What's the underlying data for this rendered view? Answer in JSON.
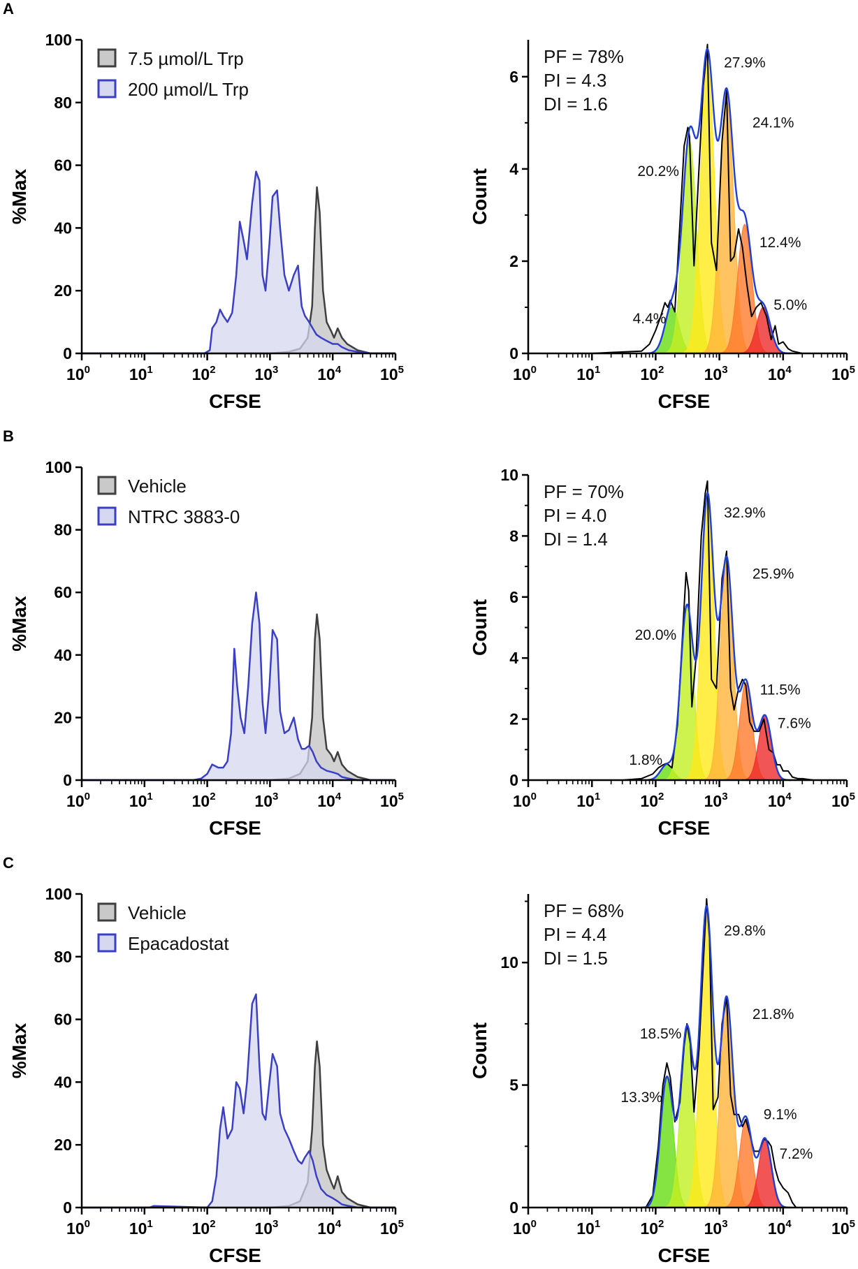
{
  "colors": {
    "gray_line": "#3f3f3f",
    "gray_fill": "#c9c9c9",
    "blue_line": "#3a3fc4",
    "blue_fill": "#d6d8ef",
    "black_line": "#000000",
    "fit_line": "#1f3fd8",
    "generations": [
      "#66dd11",
      "#c2ef22",
      "#ffe81a",
      "#ffb43a",
      "#ff7a2c",
      "#ee2b2b"
    ]
  },
  "chart_data": [
    {
      "panel": "A",
      "type": "area",
      "kind": "overlay",
      "xlabel": "CFSE",
      "ylabel": "%Max",
      "xscale": "log",
      "xlim": [
        1,
        100000
      ],
      "ylim": [
        0,
        100
      ],
      "yticks": [
        0,
        20,
        40,
        60,
        80,
        100
      ],
      "xticks": [
        {
          "base": "10",
          "exp": "0"
        },
        {
          "base": "10",
          "exp": "1"
        },
        {
          "base": "10",
          "exp": "2"
        },
        {
          "base": "10",
          "exp": "3"
        },
        {
          "base": "10",
          "exp": "4"
        },
        {
          "base": "10",
          "exp": "5"
        }
      ],
      "legend_position": "top-left",
      "series": [
        {
          "name": "7.5 µmol/L Trp",
          "color": "gray",
          "x": [
            1,
            1000,
            2000,
            3000,
            4000,
            4700,
            5200,
            5600,
            6200,
            7000,
            8000,
            9500,
            10500,
            12000,
            14000,
            17000,
            25000,
            40000,
            100000
          ],
          "values": [
            0,
            0,
            0.5,
            1.5,
            5,
            15,
            40,
            53,
            45,
            20,
            10,
            7,
            5,
            8,
            5,
            3,
            1,
            0,
            0
          ]
        },
        {
          "name": "200 µmol/L Trp",
          "color": "blue",
          "x": [
            1,
            90,
            110,
            120,
            140,
            160,
            180,
            210,
            250,
            290,
            330,
            380,
            430,
            520,
            600,
            680,
            760,
            850,
            980,
            1100,
            1300,
            1450,
            1700,
            2000,
            2400,
            2800,
            3200,
            3600,
            4200,
            4800,
            5500,
            6500,
            8000,
            10000,
            12000,
            14000,
            18000,
            25000,
            40000,
            100000
          ],
          "values": [
            0,
            0,
            1,
            8,
            10,
            14,
            12,
            10,
            13,
            25,
            42,
            36,
            30,
            48,
            58,
            55,
            25,
            20,
            35,
            50,
            52,
            40,
            25,
            20,
            25,
            28,
            15,
            12,
            10,
            8,
            6,
            5,
            4,
            3,
            3,
            2,
            1,
            0.5,
            0,
            0
          ]
        }
      ]
    },
    {
      "panel": "A",
      "type": "area",
      "kind": "generations",
      "xlabel": "CFSE",
      "ylabel": "Count",
      "xscale": "log",
      "xlim": [
        1,
        100000
      ],
      "ylim": [
        0,
        6.8
      ],
      "yticks": [
        0,
        2,
        4,
        6
      ],
      "xticks": [
        {
          "base": "10",
          "exp": "0"
        },
        {
          "base": "10",
          "exp": "1"
        },
        {
          "base": "10",
          "exp": "2"
        },
        {
          "base": "10",
          "exp": "3"
        },
        {
          "base": "10",
          "exp": "4"
        },
        {
          "base": "10",
          "exp": "5"
        }
      ],
      "stats": [
        "PF = 78%",
        "PI = 4.3",
        "DI = 1.6"
      ],
      "generations": [
        {
          "center": 180,
          "height": 1.0,
          "label": "4.4%",
          "label_x": 80,
          "label_y": 0.65
        },
        {
          "center": 340,
          "height": 4.6,
          "label": "20.2%",
          "label_x": 110,
          "label_y": 3.85
        },
        {
          "center": 650,
          "height": 6.3,
          "label": "27.9%",
          "label_x": 2500,
          "label_y": 6.2
        },
        {
          "center": 1300,
          "height": 5.5,
          "label": "24.1%",
          "label_x": 7000,
          "label_y": 4.9
        },
        {
          "center": 2500,
          "height": 2.8,
          "label": "12.4%",
          "label_x": 9000,
          "label_y": 2.3
        },
        {
          "center": 4900,
          "height": 1.0,
          "label": "5.0%",
          "label_x": 13000,
          "label_y": 0.95
        }
      ],
      "sigma_decades": 0.11,
      "raw": {
        "x": [
          1,
          10,
          20,
          60,
          80,
          100,
          120,
          140,
          155,
          170,
          200,
          240,
          280,
          320,
          340,
          400,
          470,
          560,
          650,
          750,
          900,
          1100,
          1300,
          1500,
          1700,
          2000,
          2300,
          2700,
          3200,
          3800,
          4500,
          5500,
          6500,
          7500,
          8500,
          10000,
          12000,
          14000,
          20000,
          100000
        ],
        "values": [
          0,
          0,
          0.02,
          0.05,
          0.2,
          0.5,
          0.8,
          1.1,
          1.0,
          1.15,
          0.9,
          2.8,
          4.5,
          4.9,
          4.7,
          1.9,
          3.8,
          5.8,
          6.7,
          2.4,
          1.8,
          4.6,
          5.7,
          2.0,
          2.1,
          2.7,
          2.3,
          1.5,
          0.8,
          1.0,
          1.1,
          0.8,
          0.3,
          0.6,
          0.2,
          0.25,
          0.1,
          0.05,
          0,
          0
        ]
      }
    },
    {
      "panel": "B",
      "type": "area",
      "kind": "overlay",
      "xlabel": "CFSE",
      "ylabel": "%Max",
      "xscale": "log",
      "xlim": [
        1,
        100000
      ],
      "ylim": [
        0,
        100
      ],
      "yticks": [
        0,
        20,
        40,
        60,
        80,
        100
      ],
      "xticks": [
        {
          "base": "10",
          "exp": "0"
        },
        {
          "base": "10",
          "exp": "1"
        },
        {
          "base": "10",
          "exp": "2"
        },
        {
          "base": "10",
          "exp": "3"
        },
        {
          "base": "10",
          "exp": "4"
        },
        {
          "base": "10",
          "exp": "5"
        }
      ],
      "legend_position": "top-left",
      "series": [
        {
          "name": "Vehicle",
          "color": "gray",
          "x": [
            1,
            1000,
            2000,
            3000,
            4000,
            4700,
            5200,
            5600,
            6200,
            7000,
            8000,
            9500,
            10500,
            12000,
            14000,
            17000,
            25000,
            40000,
            100000
          ],
          "values": [
            0,
            0,
            0.5,
            2,
            6,
            20,
            45,
            53,
            45,
            20,
            10,
            8,
            6,
            9,
            5,
            3,
            1,
            0,
            0
          ]
        },
        {
          "name": "NTRC 3883-0",
          "color": "blue",
          "x": [
            1,
            60,
            80,
            100,
            120,
            150,
            180,
            210,
            240,
            270,
            300,
            340,
            390,
            450,
            520,
            600,
            680,
            760,
            850,
            980,
            1100,
            1300,
            1450,
            1700,
            2000,
            2400,
            2800,
            3200,
            3600,
            4200,
            4800,
            5500,
            6500,
            8000,
            10000,
            12000,
            14000,
            18000,
            25000,
            40000,
            100000
          ],
          "values": [
            0,
            0,
            0.5,
            2,
            5,
            4,
            4,
            6,
            15,
            42,
            30,
            20,
            15,
            30,
            50,
            60,
            50,
            25,
            15,
            30,
            48,
            45,
            22,
            15,
            16,
            20,
            13,
            10,
            10,
            11,
            9,
            6,
            4,
            3,
            2.5,
            2,
            1,
            0.5,
            0,
            0,
            0
          ]
        }
      ]
    },
    {
      "panel": "B",
      "type": "area",
      "kind": "generations",
      "xlabel": "CFSE",
      "ylabel": "Count",
      "xscale": "log",
      "xlim": [
        1,
        100000
      ],
      "ylim": [
        0,
        10
      ],
      "yticks": [
        0,
        2,
        4,
        6,
        8,
        10
      ],
      "xticks": [
        {
          "base": "10",
          "exp": "0"
        },
        {
          "base": "10",
          "exp": "1"
        },
        {
          "base": "10",
          "exp": "2"
        },
        {
          "base": "10",
          "exp": "3"
        },
        {
          "base": "10",
          "exp": "4"
        },
        {
          "base": "10",
          "exp": "5"
        }
      ],
      "stats": [
        "PF = 70%",
        "PI = 4.0",
        "DI = 1.4"
      ],
      "generations": [
        {
          "center": 150,
          "height": 0.5,
          "label": "1.8%",
          "label_x": 70,
          "label_y": 0.5
        },
        {
          "center": 310,
          "height": 5.7,
          "label": "20.0%",
          "label_x": 100,
          "label_y": 4.6
        },
        {
          "center": 650,
          "height": 9.3,
          "label": "32.9%",
          "label_x": 2500,
          "label_y": 8.6
        },
        {
          "center": 1300,
          "height": 7.2,
          "label": "25.9%",
          "label_x": 7000,
          "label_y": 6.6
        },
        {
          "center": 2600,
          "height": 3.2,
          "label": "11.5%",
          "label_x": 9000,
          "label_y": 2.8
        },
        {
          "center": 5200,
          "height": 2.1,
          "label": "7.6%",
          "label_x": 15000,
          "label_y": 1.7
        }
      ],
      "sigma_decades": 0.1,
      "raw": {
        "x": [
          1,
          30,
          60,
          90,
          110,
          130,
          150,
          180,
          220,
          260,
          300,
          330,
          370,
          430,
          520,
          600,
          650,
          750,
          900,
          1100,
          1300,
          1500,
          1700,
          2000,
          2300,
          2600,
          3000,
          3500,
          4200,
          5000,
          6000,
          7000,
          8000,
          9000,
          10000,
          12000,
          14000,
          17000,
          20000,
          30000,
          100000
        ],
        "values": [
          0,
          0,
          0.05,
          0.2,
          0.4,
          0.5,
          0.55,
          0.4,
          1.8,
          4.5,
          6.8,
          6.2,
          2.4,
          4.0,
          8.0,
          9.4,
          9.8,
          3.3,
          3.0,
          6.6,
          7.5,
          3.0,
          2.3,
          3.0,
          3.3,
          3.1,
          1.9,
          1.6,
          1.6,
          2.0,
          1.0,
          0.9,
          0.5,
          0.5,
          0.3,
          0.3,
          0.1,
          0.05,
          0.05,
          0,
          0
        ]
      }
    },
    {
      "panel": "C",
      "type": "area",
      "kind": "overlay",
      "xlabel": "CFSE",
      "ylabel": "%Max",
      "xscale": "log",
      "xlim": [
        1,
        100000
      ],
      "ylim": [
        0,
        100
      ],
      "yticks": [
        0,
        20,
        40,
        60,
        80,
        100
      ],
      "xticks": [
        {
          "base": "10",
          "exp": "0"
        },
        {
          "base": "10",
          "exp": "1"
        },
        {
          "base": "10",
          "exp": "2"
        },
        {
          "base": "10",
          "exp": "3"
        },
        {
          "base": "10",
          "exp": "4"
        },
        {
          "base": "10",
          "exp": "5"
        }
      ],
      "legend_position": "top-left",
      "series": [
        {
          "name": "Vehicle",
          "color": "gray",
          "x": [
            1,
            1000,
            2000,
            3000,
            4000,
            4700,
            5200,
            5600,
            6200,
            7000,
            8000,
            9500,
            10500,
            12000,
            14000,
            17000,
            25000,
            40000,
            100000
          ],
          "values": [
            0,
            0,
            0.5,
            2,
            8,
            25,
            45,
            53,
            45,
            20,
            12,
            8,
            6,
            10,
            5,
            3,
            1,
            0,
            0
          ]
        },
        {
          "name": "Epacadostat",
          "color": "blue",
          "x": [
            1,
            12,
            14,
            100,
            120,
            140,
            160,
            180,
            210,
            250,
            290,
            330,
            380,
            430,
            520,
            600,
            680,
            760,
            850,
            980,
            1100,
            1300,
            1450,
            1700,
            2000,
            2400,
            2800,
            3200,
            3600,
            4200,
            4800,
            5500,
            6500,
            8000,
            10000,
            12000,
            14000,
            18000,
            25000,
            40000,
            100000
          ],
          "values": [
            0,
            0,
            0.5,
            0,
            2,
            10,
            25,
            32,
            22,
            25,
            40,
            38,
            30,
            40,
            65,
            68,
            45,
            30,
            28,
            40,
            49,
            45,
            30,
            25,
            22,
            18,
            15,
            14,
            16,
            18,
            15,
            10,
            6,
            4,
            3,
            2,
            1,
            0.5,
            0,
            0,
            0
          ]
        }
      ]
    },
    {
      "panel": "C",
      "type": "area",
      "kind": "generations",
      "xlabel": "CFSE",
      "ylabel": "Count",
      "xscale": "log",
      "xlim": [
        1,
        100000
      ],
      "ylim": [
        0,
        12.8
      ],
      "yticks": [
        0,
        5,
        10
      ],
      "xticks": [
        {
          "base": "10",
          "exp": "0"
        },
        {
          "base": "10",
          "exp": "1"
        },
        {
          "base": "10",
          "exp": "2"
        },
        {
          "base": "10",
          "exp": "3"
        },
        {
          "base": "10",
          "exp": "4"
        },
        {
          "base": "10",
          "exp": "5"
        }
      ],
      "stats": [
        "PF = 68%",
        "PI = 4.4",
        "DI = 1.5"
      ],
      "generations": [
        {
          "center": 150,
          "height": 5.3,
          "label": "13.3%",
          "label_x": 60,
          "label_y": 4.3
        },
        {
          "center": 310,
          "height": 7.3,
          "label": "18.5%",
          "label_x": 120,
          "label_y": 6.9
        },
        {
          "center": 630,
          "height": 12.2,
          "label": "29.8%",
          "label_x": 2500,
          "label_y": 11.1
        },
        {
          "center": 1300,
          "height": 8.5,
          "label": "21.8%",
          "label_x": 7000,
          "label_y": 7.7
        },
        {
          "center": 2600,
          "height": 3.6,
          "label": "9.1%",
          "label_x": 9000,
          "label_y": 3.6
        },
        {
          "center": 5200,
          "height": 2.8,
          "label": "7.2%",
          "label_x": 16000,
          "label_y": 2.0
        }
      ],
      "sigma_decades": 0.1,
      "raw": {
        "x": [
          1,
          70,
          90,
          110,
          130,
          150,
          170,
          200,
          240,
          280,
          310,
          350,
          400,
          480,
          560,
          630,
          700,
          800,
          950,
          1100,
          1300,
          1500,
          1700,
          2000,
          2300,
          2600,
          3000,
          3500,
          4200,
          5000,
          5800,
          6500,
          7500,
          8500,
          10000,
          12000,
          14000,
          16000,
          100000
        ],
        "values": [
          0,
          0,
          0.5,
          2.5,
          5.0,
          5.9,
          5.3,
          3.5,
          4.3,
          6.6,
          7.5,
          6.7,
          3.9,
          6.5,
          10.0,
          12.6,
          11.0,
          4.0,
          4.5,
          7.5,
          8.6,
          4.6,
          3.8,
          3.8,
          3.3,
          3.6,
          3.0,
          2.3,
          2.3,
          2.8,
          2.7,
          2.5,
          1.6,
          1.1,
          0.8,
          0.6,
          0.2,
          0.0,
          0
        ]
      }
    }
  ]
}
